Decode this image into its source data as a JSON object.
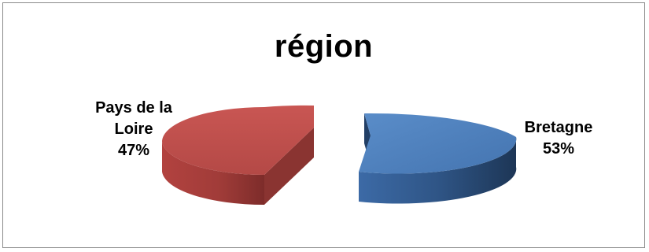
{
  "chart_data": {
    "type": "pie",
    "title": "région",
    "slices": [
      {
        "label_lines": [
          "Bretagne",
          "53%"
        ],
        "value": 53,
        "color": "#4f81bd"
      },
      {
        "label_lines": [
          "Pays de la",
          "Loire",
          "47%"
        ],
        "value": 47,
        "color": "#c0504d"
      }
    ],
    "three_d": true,
    "exploded": true,
    "legend": "none"
  }
}
